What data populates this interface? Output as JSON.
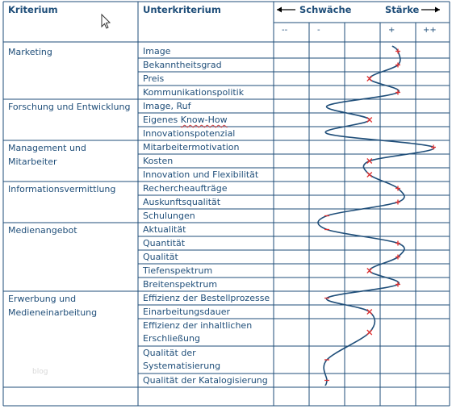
{
  "headers": {
    "kriterium": "Kriterium",
    "unterkriterium": "Unterkriterium",
    "schwaeche": "Schwäche",
    "staerke": "Stärke"
  },
  "scale": [
    "--",
    "-",
    "",
    "+",
    "++"
  ],
  "groups": [
    {
      "label": [
        "Marketing"
      ],
      "items": [
        "Image",
        "Bekanntheitsgrad",
        "Preis",
        "Kommunikationspolitik"
      ]
    },
    {
      "label": [
        "Forschung und Entwicklung"
      ],
      "items": [
        "Image, Ruf",
        "Eigenes Know-How",
        "Innovationspotenzial"
      ]
    },
    {
      "label": [
        "Management und",
        "Mitarbeiter"
      ],
      "items": [
        "Mitarbeitermotivation",
        "Kosten",
        "Innovation und Flexibilität"
      ]
    },
    {
      "label": [
        "Informationsvermittlung"
      ],
      "items": [
        "Rechercheaufträge",
        "Auskunftsqualität",
        "Schulungen"
      ]
    },
    {
      "label": [
        "Medienangebot"
      ],
      "items": [
        "Aktualität",
        "Quantität",
        "Qualität",
        "Tiefenspektrum",
        "Breitenspektrum"
      ]
    },
    {
      "label": [
        "Erwerbung und",
        "Medieneinarbeitung"
      ],
      "items": [
        "Effizienz der Bestellprozesse",
        "Einarbeitungsdauer",
        "Effizienz der inhaltlichen Erschließung",
        "Qualität der Systematisierung",
        "Qualität der Katalogisierung"
      ]
    }
  ],
  "rating_items": [
    {
      "label": "Image",
      "mark": "+",
      "level": 1.0
    },
    {
      "label": "Bekanntheitsgrad",
      "mark": "+",
      "level": 1.0
    },
    {
      "label": "Preis",
      "mark": "x",
      "level": 0.2
    },
    {
      "label": "Kommunikationspolitik",
      "mark": "+",
      "level": 1.0
    },
    {
      "label": "Image, Ruf",
      "mark": "",
      "level": -1.0
    },
    {
      "label": "Eigenes Know-How",
      "mark": "x",
      "level": 0.2
    },
    {
      "label": "Innovationspotenzial",
      "mark": "",
      "level": -1.0
    },
    {
      "label": "Mitarbeitermotivation",
      "mark": "+",
      "level": 2.0
    },
    {
      "label": "Kosten",
      "mark": "x",
      "level": 0.2
    },
    {
      "label": "Innovation und Flexibilität",
      "mark": "x",
      "level": 0.2
    },
    {
      "label": "Rechercheaufträge",
      "mark": "+",
      "level": 1.0
    },
    {
      "label": "Auskunftsqualität",
      "mark": "+",
      "level": 1.0
    },
    {
      "label": "Schulungen",
      "mark": "-",
      "level": -1.0
    },
    {
      "label": "Aktualität",
      "mark": "-",
      "level": -1.0
    },
    {
      "label": "Quantität",
      "mark": "+",
      "level": 1.0
    },
    {
      "label": "Qualität",
      "mark": "+",
      "level": 1.0
    },
    {
      "label": "Tiefenspektrum",
      "mark": "x",
      "level": 0.2
    },
    {
      "label": "Breitenspektrum",
      "mark": "+",
      "level": 1.0
    },
    {
      "label": "Effizienz der Bestellprozesse",
      "mark": "-",
      "level": -1.0
    },
    {
      "label": "Einarbeitungsdauer",
      "mark": "x",
      "level": 0.2
    },
    {
      "label": "Effizienz der inhaltlichen Erschließung",
      "mark": "x",
      "level": 0.2
    },
    {
      "label": "Qualität der Systematisierung",
      "mark": "-",
      "level": -1.0
    },
    {
      "label": "Qualität der Katalogisierung",
      "mark": "-",
      "level": -1.0
    }
  ],
  "watermark": "blog",
  "colors": {
    "line": "#1f4e79",
    "grid": "#1f4e79",
    "mark": "#e03030"
  }
}
